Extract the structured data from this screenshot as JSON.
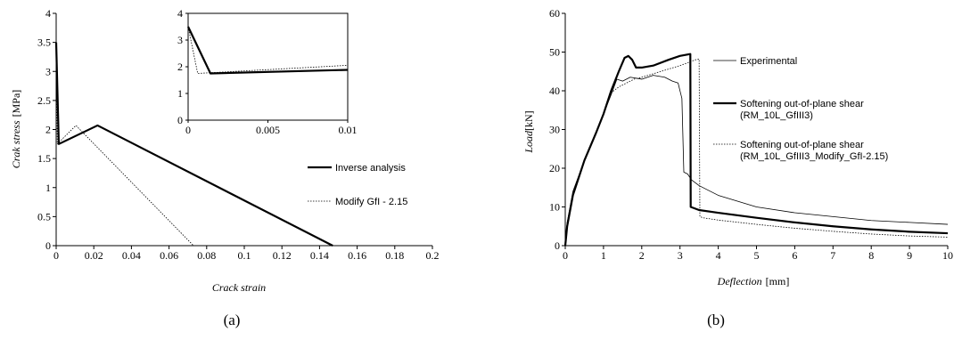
{
  "captions": {
    "a": "(a)",
    "b": "(b)"
  },
  "chart_data": [
    {
      "type": "line",
      "title": "",
      "xlabel": "Crack  strain",
      "ylabel": "Crak  stress",
      "ylabel_unit": "[MPa]",
      "xlim": [
        0,
        0.2
      ],
      "ylim": [
        0,
        4
      ],
      "xticks": [
        "0",
        "0.02",
        "0.04",
        "0.06",
        "0.08",
        "0.1",
        "0.12",
        "0.14",
        "0.16",
        "0.18",
        "0.2"
      ],
      "yticks": [
        "0",
        "0.5",
        "1",
        "1.5",
        "2",
        "2.5",
        "3",
        "3.5",
        "4"
      ],
      "legend_position": "right",
      "series": [
        {
          "name": "Inverse analysis",
          "style": "thick-solid",
          "x": [
            0,
            0.0014,
            0.022,
            0.147
          ],
          "y": [
            3.5,
            1.75,
            2.07,
            0
          ]
        },
        {
          "name": "Modify GfI - 2.15",
          "style": "dotted",
          "x": [
            0,
            0.0006,
            0.0105,
            0.073
          ],
          "y": [
            3.5,
            1.75,
            2.07,
            0
          ]
        }
      ],
      "inset": {
        "xlim": [
          0,
          0.01
        ],
        "ylim": [
          0,
          4
        ],
        "xticks": [
          "0",
          "0.005",
          "0.01"
        ],
        "yticks": [
          "0",
          "1",
          "2",
          "3",
          "4"
        ]
      }
    },
    {
      "type": "line",
      "title": "",
      "xlabel": "Deflection",
      "xlabel_unit": "[mm]",
      "ylabel": "Load",
      "ylabel_unit": "[kN]",
      "xlim": [
        0,
        10
      ],
      "ylim": [
        0,
        60
      ],
      "xticks": [
        "0",
        "1",
        "2",
        "3",
        "4",
        "5",
        "6",
        "7",
        "8",
        "9",
        "10"
      ],
      "yticks": [
        "0",
        "10",
        "20",
        "30",
        "40",
        "50",
        "60"
      ],
      "legend_position": "right",
      "series": [
        {
          "name": "Experimental",
          "style": "thin-solid",
          "x": [
            0,
            0.05,
            0.2,
            0.5,
            0.8,
            1.0,
            1.2,
            1.35,
            1.5,
            1.7,
            2.0,
            2.3,
            2.6,
            2.8,
            2.95,
            3.05,
            3.1,
            3.2,
            3.3,
            3.5,
            4.0,
            5.0,
            6.0,
            7.0,
            8.0,
            9.0,
            10.0
          ],
          "y": [
            0,
            6,
            14,
            22,
            29,
            34,
            39,
            43,
            42.5,
            43.5,
            43,
            44,
            43.5,
            42.5,
            42,
            38,
            19,
            18.5,
            17,
            15.5,
            13,
            10,
            8.5,
            7.5,
            6.5,
            6,
            5.5
          ]
        },
        {
          "name": "Softening out-of-plane shear",
          "name_line2": "(RM_10L_GfIII3)",
          "style": "thick-solid",
          "x": [
            0,
            0.05,
            0.2,
            0.5,
            0.8,
            1.0,
            1.2,
            1.4,
            1.55,
            1.65,
            1.75,
            1.85,
            2.0,
            2.3,
            2.7,
            3.0,
            3.27,
            3.28,
            3.5,
            4.0,
            5.0,
            6.0,
            7.0,
            8.0,
            9.0,
            10.0
          ],
          "y": [
            0,
            5,
            13,
            22,
            29,
            34,
            40,
            45,
            48.5,
            49,
            48,
            46,
            46,
            46.5,
            48,
            49,
            49.5,
            10,
            9.2,
            8.5,
            7.2,
            6.0,
            5.0,
            4.2,
            3.6,
            3.2
          ]
        },
        {
          "name": "Softening out-of-plane shear",
          "name_line2": "(RM_10L_GfIII3_Modify_GfI-2.15)",
          "style": "dotted",
          "x": [
            0,
            0.05,
            0.2,
            0.5,
            0.8,
            1.0,
            1.2,
            1.4,
            1.6,
            1.8,
            2.0,
            2.5,
            3.0,
            3.4,
            3.5,
            3.52,
            3.6,
            4.0,
            5.0,
            6.0,
            7.0,
            8.0,
            9.0,
            10.0
          ],
          "y": [
            0,
            5,
            13,
            22,
            29,
            34,
            39.5,
            41,
            42,
            43,
            43.5,
            45,
            46.5,
            48,
            48.2,
            7.5,
            7.2,
            6.6,
            5.5,
            4.5,
            3.7,
            3.0,
            2.5,
            2.2
          ]
        }
      ]
    }
  ]
}
